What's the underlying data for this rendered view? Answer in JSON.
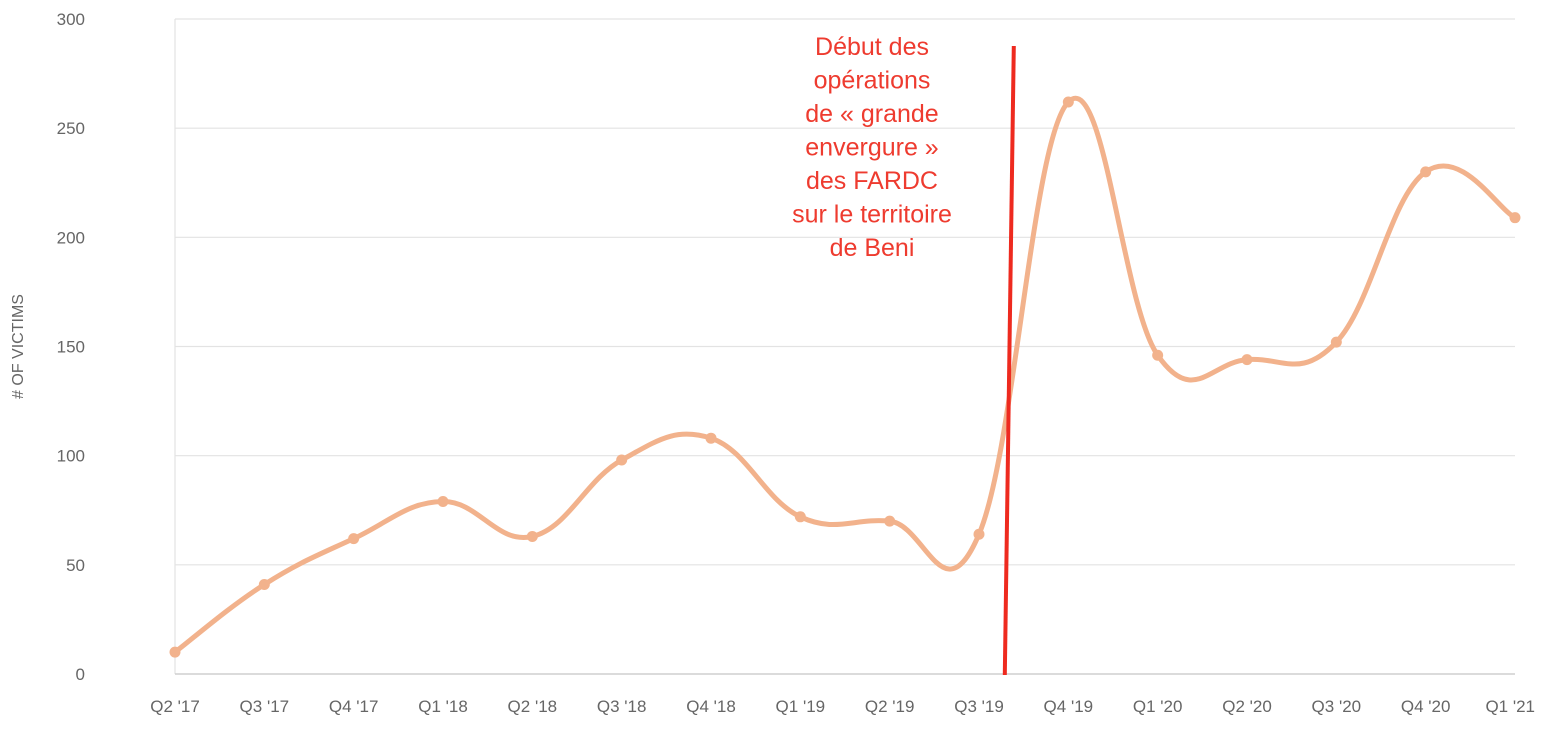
{
  "chart_data": {
    "type": "line",
    "ylabel": "# OF VICTIMS",
    "xlabel": "",
    "ylim": [
      0,
      300
    ],
    "yticks": [
      0,
      50,
      100,
      150,
      200,
      250,
      300
    ],
    "grid": true,
    "categories": [
      "Q2 '17",
      "Q3 '17",
      "Q4 '17",
      "Q1 '18",
      "Q2 '18",
      "Q3 '18",
      "Q4 '18",
      "Q1 '19",
      "Q2 '19",
      "Q3 '19",
      "Q4 '19",
      "Q1 '20",
      "Q2 '20",
      "Q3 '20",
      "Q4 '20",
      "Q1 '21"
    ],
    "series": [
      {
        "values": [
          10,
          41,
          62,
          79,
          63,
          98,
          108,
          72,
          70,
          64,
          262,
          146,
          144,
          152,
          230,
          209
        ],
        "color": "#f2b28c"
      }
    ],
    "annotation": {
      "text_lines": [
        "Début des",
        "opérations",
        "de « grande",
        "envergure »",
        "des FARDC",
        "sur le territoire",
        "de Beni"
      ],
      "color": "#ee3b2f",
      "marker_position": 9.3
    }
  }
}
